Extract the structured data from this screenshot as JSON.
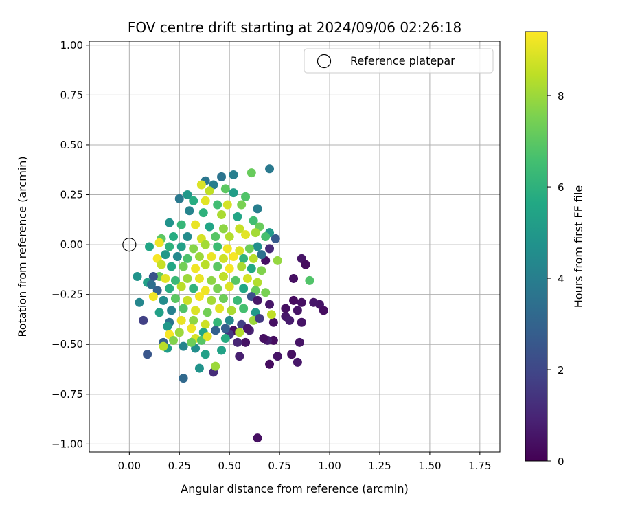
{
  "chart_data": {
    "type": "scatter",
    "title": "FOV centre drift starting at 2024/09/06 02:26:18",
    "xlabel": "Angular distance from reference (arcmin)",
    "ylabel": "Rotation from reference (arcmin)",
    "xlim": [
      -0.2,
      1.85
    ],
    "ylim": [
      -1.04,
      1.02
    ],
    "xticks": [
      "0.00",
      "0.25",
      "0.50",
      "0.75",
      "1.00",
      "1.25",
      "1.50",
      "1.75"
    ],
    "yticks": [
      "1.00",
      "0.75",
      "0.50",
      "0.25",
      "0.00",
      "−0.25",
      "−0.50",
      "−0.75",
      "−1.00"
    ],
    "grid": true,
    "legend": {
      "placement": "top-right",
      "entries": [
        "Reference platepar"
      ]
    },
    "reference_point": {
      "x": 0,
      "y": 0
    },
    "colorbar": {
      "label": "Hours from first FF file",
      "colormap": "viridis",
      "range": [
        0,
        9.4
      ],
      "ticks": [
        "0",
        "2",
        "4",
        "6",
        "8"
      ]
    },
    "series": [
      {
        "color_value_range": [
          0,
          9.4
        ],
        "points": [
          [
            0.64,
            -0.97,
            0.4
          ],
          [
            0.27,
            -0.67,
            3.2
          ],
          [
            0.35,
            -0.62,
            4.8
          ],
          [
            0.42,
            -0.64,
            1.2
          ],
          [
            0.43,
            -0.61,
            8.0
          ],
          [
            0.09,
            -0.55,
            2.5
          ],
          [
            0.55,
            -0.56,
            0.8
          ],
          [
            0.7,
            -0.6,
            0.3
          ],
          [
            0.74,
            -0.56,
            0.5
          ],
          [
            0.81,
            -0.55,
            0.4
          ],
          [
            0.84,
            -0.59,
            0.6
          ],
          [
            0.85,
            -0.49,
            0.5
          ],
          [
            0.72,
            -0.48,
            0.3
          ],
          [
            0.69,
            -0.48,
            0.7
          ],
          [
            0.67,
            -0.47,
            0.4
          ],
          [
            0.58,
            -0.49,
            0.5
          ],
          [
            0.54,
            -0.49,
            1.0
          ],
          [
            0.52,
            -0.43,
            0.4
          ],
          [
            0.5,
            -0.45,
            1.5
          ],
          [
            0.48,
            -0.42,
            2.8
          ],
          [
            0.95,
            -0.3,
            0.5
          ],
          [
            0.97,
            -0.33,
            0.3
          ],
          [
            0.92,
            -0.29,
            0.6
          ],
          [
            0.86,
            -0.29,
            0.4
          ],
          [
            0.84,
            -0.33,
            0.5
          ],
          [
            0.82,
            -0.28,
            0.3
          ],
          [
            0.78,
            -0.36,
            0.6
          ],
          [
            0.78,
            -0.32,
            0.4
          ],
          [
            0.86,
            -0.39,
            0.5
          ],
          [
            0.72,
            -0.39,
            0.4
          ],
          [
            0.8,
            -0.38,
            0.7
          ],
          [
            0.82,
            -0.17,
            0.4
          ],
          [
            0.86,
            -0.07,
            0.5
          ],
          [
            0.88,
            -0.1,
            0.3
          ],
          [
            0.9,
            -0.18,
            6.8
          ],
          [
            0.71,
            -0.35,
            8.5
          ],
          [
            0.7,
            -0.3,
            0.6
          ],
          [
            0.68,
            -0.24,
            7.5
          ],
          [
            0.68,
            -0.08,
            0.4
          ],
          [
            0.7,
            0.38,
            3.8
          ],
          [
            0.61,
            0.36,
            7.2
          ],
          [
            0.52,
            0.35,
            4.0
          ],
          [
            0.46,
            0.34,
            3.6
          ],
          [
            0.38,
            0.32,
            3.7
          ],
          [
            0.42,
            0.3,
            4.0
          ],
          [
            0.36,
            0.3,
            8.9
          ],
          [
            0.4,
            0.27,
            8.5
          ],
          [
            0.48,
            0.28,
            7.0
          ],
          [
            0.52,
            0.26,
            5.2
          ],
          [
            0.58,
            0.24,
            6.8
          ],
          [
            0.29,
            0.25,
            5.0
          ],
          [
            0.25,
            0.23,
            3.8
          ],
          [
            0.32,
            0.22,
            5.8
          ],
          [
            0.38,
            0.22,
            9.0
          ],
          [
            0.44,
            0.2,
            6.5
          ],
          [
            0.49,
            0.2,
            8.8
          ],
          [
            0.56,
            0.2,
            7.5
          ],
          [
            0.64,
            0.18,
            4.0
          ],
          [
            0.3,
            0.17,
            4.2
          ],
          [
            0.37,
            0.16,
            6.0
          ],
          [
            0.46,
            0.15,
            8.2
          ],
          [
            0.54,
            0.14,
            5.5
          ],
          [
            0.62,
            0.12,
            6.5
          ],
          [
            0.2,
            0.11,
            4.8
          ],
          [
            0.26,
            0.1,
            6.2
          ],
          [
            0.33,
            0.1,
            9.1
          ],
          [
            0.4,
            0.09,
            5.5
          ],
          [
            0.47,
            0.08,
            7.8
          ],
          [
            0.55,
            0.08,
            8.6
          ],
          [
            0.65,
            0.09,
            7.2
          ],
          [
            0.7,
            0.06,
            5.0
          ],
          [
            0.68,
            0.04,
            6.6
          ],
          [
            0.63,
            0.06,
            8.1
          ],
          [
            0.58,
            0.05,
            9.0
          ],
          [
            0.5,
            0.04,
            8.3
          ],
          [
            0.43,
            0.04,
            6.9
          ],
          [
            0.36,
            0.03,
            8.8
          ],
          [
            0.29,
            0.04,
            4.5
          ],
          [
            0.22,
            0.04,
            5.8
          ],
          [
            0.16,
            0.03,
            7.0
          ],
          [
            0.1,
            -0.01,
            5.5
          ],
          [
            0.15,
            0.01,
            9.2
          ],
          [
            0.73,
            0.03,
            2.6
          ],
          [
            0.7,
            -0.02,
            1.1
          ],
          [
            0.64,
            -0.01,
            4.6
          ],
          [
            0.6,
            -0.02,
            7.3
          ],
          [
            0.55,
            -0.03,
            8.9
          ],
          [
            0.49,
            -0.02,
            9.2
          ],
          [
            0.44,
            -0.01,
            6.4
          ],
          [
            0.38,
            0.0,
            8.1
          ],
          [
            0.32,
            -0.02,
            7.7
          ],
          [
            0.26,
            -0.01,
            5.3
          ],
          [
            0.2,
            -0.01,
            6.0
          ],
          [
            0.74,
            -0.08,
            7.9
          ],
          [
            0.66,
            -0.05,
            3.5
          ],
          [
            0.62,
            -0.07,
            8.4
          ],
          [
            0.57,
            -0.07,
            6.1
          ],
          [
            0.52,
            -0.06,
            9.3
          ],
          [
            0.47,
            -0.07,
            8.7
          ],
          [
            0.41,
            -0.06,
            9.1
          ],
          [
            0.35,
            -0.06,
            8.0
          ],
          [
            0.29,
            -0.07,
            6.7
          ],
          [
            0.24,
            -0.06,
            4.4
          ],
          [
            0.18,
            -0.05,
            5.0
          ],
          [
            0.14,
            -0.07,
            9.3
          ],
          [
            0.16,
            -0.1,
            8.6
          ],
          [
            0.21,
            -0.11,
            5.6
          ],
          [
            0.27,
            -0.11,
            7.4
          ],
          [
            0.33,
            -0.12,
            9.2
          ],
          [
            0.38,
            -0.1,
            8.4
          ],
          [
            0.44,
            -0.11,
            7.0
          ],
          [
            0.5,
            -0.12,
            9.3
          ],
          [
            0.56,
            -0.11,
            8.2
          ],
          [
            0.61,
            -0.12,
            5.7
          ],
          [
            0.66,
            -0.13,
            7.6
          ],
          [
            0.15,
            -0.16,
            7.2
          ],
          [
            0.12,
            -0.16,
            2.4
          ],
          [
            0.04,
            -0.16,
            4.8
          ],
          [
            0.09,
            -0.19,
            5.3
          ],
          [
            0.11,
            -0.2,
            3.5
          ],
          [
            0.18,
            -0.17,
            9.0
          ],
          [
            0.23,
            -0.18,
            6.3
          ],
          [
            0.29,
            -0.17,
            8.0
          ],
          [
            0.35,
            -0.17,
            9.1
          ],
          [
            0.41,
            -0.18,
            7.8
          ],
          [
            0.47,
            -0.16,
            8.5
          ],
          [
            0.53,
            -0.18,
            6.9
          ],
          [
            0.59,
            -0.17,
            8.8
          ],
          [
            0.64,
            -0.19,
            8.3
          ],
          [
            0.14,
            -0.23,
            3.0
          ],
          [
            0.2,
            -0.22,
            5.8
          ],
          [
            0.26,
            -0.21,
            8.4
          ],
          [
            0.32,
            -0.22,
            6.1
          ],
          [
            0.38,
            -0.23,
            9.2
          ],
          [
            0.44,
            -0.22,
            7.5
          ],
          [
            0.5,
            -0.21,
            8.9
          ],
          [
            0.57,
            -0.22,
            5.6
          ],
          [
            0.63,
            -0.23,
            7.2
          ],
          [
            0.05,
            -0.29,
            4.3
          ],
          [
            0.12,
            -0.26,
            9.2
          ],
          [
            0.17,
            -0.28,
            4.5
          ],
          [
            0.23,
            -0.27,
            7.0
          ],
          [
            0.29,
            -0.28,
            8.6
          ],
          [
            0.35,
            -0.26,
            9.3
          ],
          [
            0.41,
            -0.28,
            8.1
          ],
          [
            0.47,
            -0.27,
            7.3
          ],
          [
            0.54,
            -0.28,
            6.3
          ],
          [
            0.61,
            -0.26,
            2.3
          ],
          [
            0.64,
            -0.28,
            0.6
          ],
          [
            0.15,
            -0.34,
            5.3
          ],
          [
            0.21,
            -0.33,
            4.1
          ],
          [
            0.27,
            -0.32,
            6.8
          ],
          [
            0.33,
            -0.33,
            8.9
          ],
          [
            0.39,
            -0.34,
            7.4
          ],
          [
            0.45,
            -0.32,
            9.0
          ],
          [
            0.51,
            -0.33,
            8.2
          ],
          [
            0.57,
            -0.32,
            6.6
          ],
          [
            0.63,
            -0.34,
            5.0
          ],
          [
            0.2,
            -0.39,
            3.6
          ],
          [
            0.26,
            -0.38,
            9.1
          ],
          [
            0.32,
            -0.38,
            7.8
          ],
          [
            0.38,
            -0.4,
            8.7
          ],
          [
            0.44,
            -0.39,
            6.2
          ],
          [
            0.5,
            -0.38,
            4.4
          ],
          [
            0.56,
            -0.4,
            1.8
          ],
          [
            0.62,
            -0.38,
            8.0
          ],
          [
            0.07,
            -0.38,
            1.8
          ],
          [
            0.19,
            -0.41,
            5.0
          ],
          [
            0.25,
            -0.44,
            8.0
          ],
          [
            0.31,
            -0.42,
            9.2
          ],
          [
            0.37,
            -0.44,
            5.5
          ],
          [
            0.43,
            -0.43,
            2.9
          ],
          [
            0.48,
            -0.47,
            5.8
          ],
          [
            0.55,
            -0.44,
            8.3
          ],
          [
            0.6,
            -0.43,
            0.9
          ],
          [
            0.2,
            -0.45,
            9.3
          ],
          [
            0.22,
            -0.48,
            7.6
          ],
          [
            0.17,
            -0.49,
            2.9
          ],
          [
            0.19,
            -0.52,
            5.1
          ],
          [
            0.27,
            -0.51,
            4.2
          ],
          [
            0.33,
            -0.47,
            8.8
          ],
          [
            0.36,
            -0.48,
            6.9
          ],
          [
            0.33,
            -0.52,
            4.6
          ],
          [
            0.38,
            -0.55,
            5.3
          ],
          [
            0.17,
            -0.51,
            8.4
          ],
          [
            0.31,
            -0.49,
            7.3
          ],
          [
            0.39,
            -0.46,
            9.0
          ],
          [
            0.46,
            -0.53,
            5.4
          ],
          [
            0.59,
            -0.42,
            0.6
          ],
          [
            0.65,
            -0.37,
            1.6
          ]
        ]
      }
    ]
  }
}
